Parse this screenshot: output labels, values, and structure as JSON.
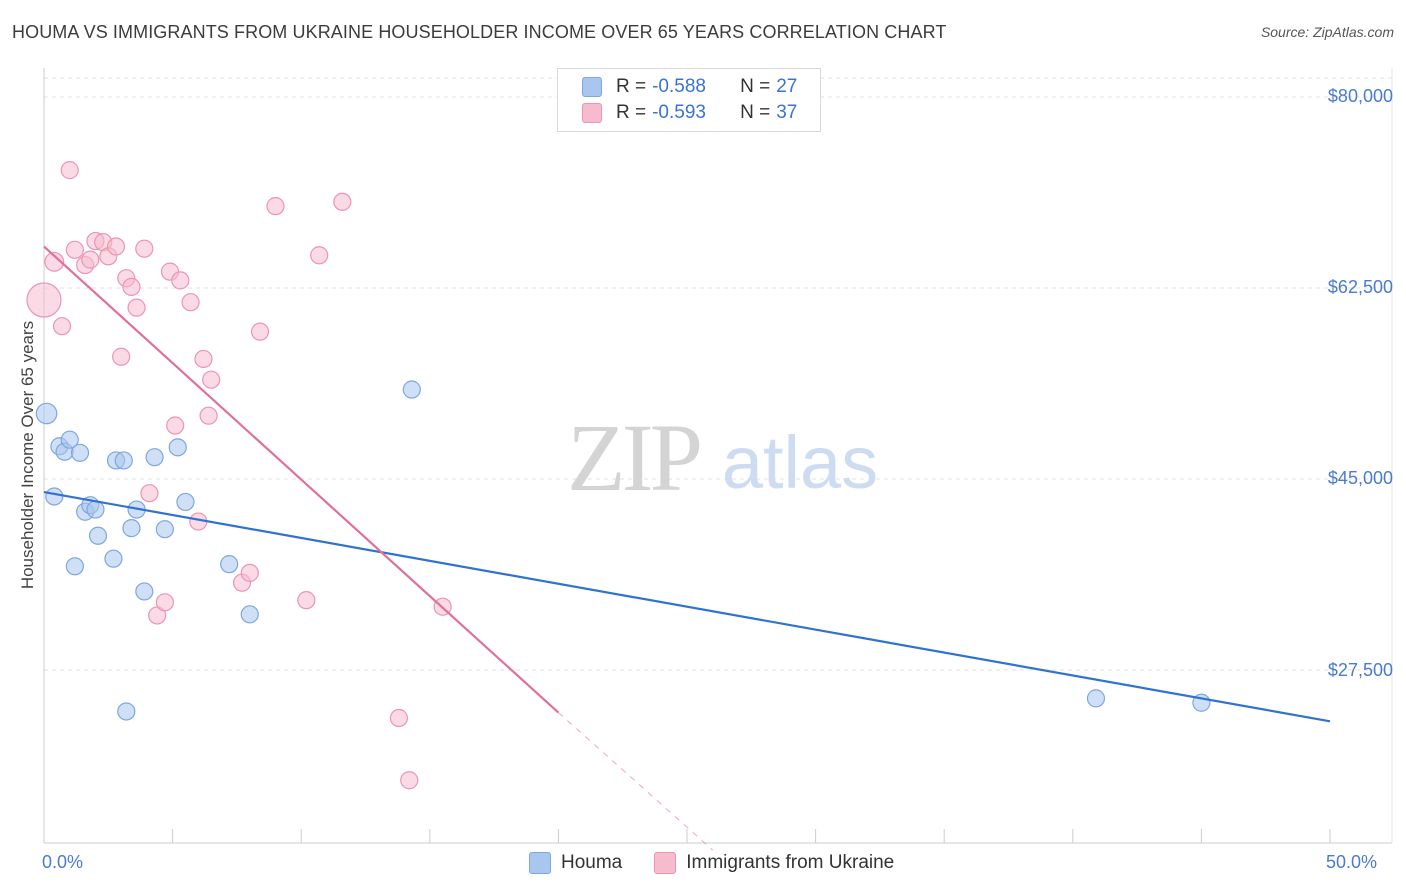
{
  "title": "HOUMA VS IMMIGRANTS FROM UKRAINE HOUSEHOLDER INCOME OVER 65 YEARS CORRELATION CHART",
  "source": "Source: ZipAtlas.com",
  "watermark": {
    "zip": "ZIP",
    "atlas": "atlas"
  },
  "legend": {
    "rows": [
      {
        "r_label": "R = ",
        "r_value": "-0.588",
        "n_label": "N = ",
        "n_value": "27",
        "color": "#a8c6ee",
        "border": "#7ea6e0"
      },
      {
        "r_label": "R = ",
        "r_value": "-0.593",
        "n_label": "N = ",
        "n_value": "37",
        "color": "#f6bccd",
        "border": "#ee94b0"
      }
    ]
  },
  "bottom_legend": [
    "Houma",
    "Immigrants from Ukraine"
  ],
  "chart_data": {
    "type": "scatter",
    "title": "HOUMA VS IMMIGRANTS FROM UKRAINE HOUSEHOLDER INCOME OVER 65 YEARS CORRELATION CHART",
    "xlabel": "",
    "ylabel": "Householder Income Over 65 years",
    "xlim": [
      0,
      50
    ],
    "ylim": [
      12000,
      83000
    ],
    "x_tick_labels": [
      "0.0%",
      "50.0%"
    ],
    "y_ticks": [
      {
        "value": 27500,
        "label": "$27,500"
      },
      {
        "value": 45000,
        "label": "$45,000"
      },
      {
        "value": 62500,
        "label": "$62,500"
      },
      {
        "value": 80000,
        "label": "$80,000"
      }
    ],
    "grid": true,
    "series": [
      {
        "name": "Houma",
        "color": "#a8c6ee",
        "stroke": "#7ea6e0",
        "line_color": "#2f72d2",
        "trend": {
          "x0": 0.0,
          "y0": 43800,
          "x1": 50.0,
          "y1": 22800,
          "dash_to": null
        },
        "points": [
          {
            "x": 0.1,
            "y": 51000,
            "s": 1.2
          },
          {
            "x": 0.4,
            "y": 43400,
            "s": 1
          },
          {
            "x": 0.6,
            "y": 48000,
            "s": 1
          },
          {
            "x": 0.8,
            "y": 47500,
            "s": 1
          },
          {
            "x": 1.0,
            "y": 48600,
            "s": 1
          },
          {
            "x": 1.2,
            "y": 37000,
            "s": 1
          },
          {
            "x": 1.4,
            "y": 47400,
            "s": 1
          },
          {
            "x": 1.6,
            "y": 42000,
            "s": 1
          },
          {
            "x": 1.8,
            "y": 42600,
            "s": 1
          },
          {
            "x": 2.0,
            "y": 42200,
            "s": 1
          },
          {
            "x": 2.1,
            "y": 39800,
            "s": 1
          },
          {
            "x": 2.7,
            "y": 37700,
            "s": 1
          },
          {
            "x": 2.8,
            "y": 46700,
            "s": 1
          },
          {
            "x": 3.1,
            "y": 46700,
            "s": 1
          },
          {
            "x": 3.2,
            "y": 23700,
            "s": 1
          },
          {
            "x": 3.4,
            "y": 40500,
            "s": 1
          },
          {
            "x": 3.6,
            "y": 42200,
            "s": 1
          },
          {
            "x": 3.9,
            "y": 34700,
            "s": 1
          },
          {
            "x": 4.3,
            "y": 47000,
            "s": 1
          },
          {
            "x": 4.7,
            "y": 40400,
            "s": 1
          },
          {
            "x": 5.2,
            "y": 47900,
            "s": 1
          },
          {
            "x": 5.5,
            "y": 42900,
            "s": 1
          },
          {
            "x": 7.2,
            "y": 37200,
            "s": 1
          },
          {
            "x": 8.0,
            "y": 32600,
            "s": 1
          },
          {
            "x": 14.3,
            "y": 53200,
            "s": 1
          },
          {
            "x": 40.9,
            "y": 24900,
            "s": 1
          },
          {
            "x": 45.0,
            "y": 24500,
            "s": 1
          }
        ]
      },
      {
        "name": "Immigrants from Ukraine",
        "color": "#f6bccd",
        "stroke": "#ee94b0",
        "line_color": "#e0709a",
        "trend": {
          "x0": 0.0,
          "y0": 66300,
          "x1": 20.0,
          "y1": 23600,
          "dash_to": {
            "x": 26.0,
            "y": 11000
          }
        },
        "points": [
          {
            "x": 0.0,
            "y": 61400,
            "s": 2.0
          },
          {
            "x": 0.4,
            "y": 64900,
            "s": 1.1
          },
          {
            "x": 0.7,
            "y": 59000,
            "s": 1
          },
          {
            "x": 1.0,
            "y": 73300,
            "s": 1
          },
          {
            "x": 1.2,
            "y": 66000,
            "s": 1
          },
          {
            "x": 1.6,
            "y": 64600,
            "s": 1
          },
          {
            "x": 1.8,
            "y": 65100,
            "s": 1
          },
          {
            "x": 2.0,
            "y": 66800,
            "s": 1
          },
          {
            "x": 2.3,
            "y": 66700,
            "s": 1
          },
          {
            "x": 2.5,
            "y": 65400,
            "s": 1
          },
          {
            "x": 2.8,
            "y": 66300,
            "s": 1
          },
          {
            "x": 3.0,
            "y": 56200,
            "s": 1
          },
          {
            "x": 3.2,
            "y": 63400,
            "s": 1
          },
          {
            "x": 3.4,
            "y": 62600,
            "s": 1
          },
          {
            "x": 3.6,
            "y": 60700,
            "s": 1
          },
          {
            "x": 3.9,
            "y": 66100,
            "s": 1
          },
          {
            "x": 4.1,
            "y": 43700,
            "s": 1
          },
          {
            "x": 4.4,
            "y": 32500,
            "s": 1
          },
          {
            "x": 4.7,
            "y": 33700,
            "s": 1
          },
          {
            "x": 4.9,
            "y": 64000,
            "s": 1
          },
          {
            "x": 5.1,
            "y": 49900,
            "s": 1
          },
          {
            "x": 5.3,
            "y": 63200,
            "s": 1
          },
          {
            "x": 5.7,
            "y": 61200,
            "s": 1
          },
          {
            "x": 6.0,
            "y": 41100,
            "s": 1
          },
          {
            "x": 6.2,
            "y": 56000,
            "s": 1
          },
          {
            "x": 6.5,
            "y": 54100,
            "s": 1
          },
          {
            "x": 6.4,
            "y": 50800,
            "s": 1
          },
          {
            "x": 7.7,
            "y": 35500,
            "s": 1
          },
          {
            "x": 8.0,
            "y": 36400,
            "s": 1
          },
          {
            "x": 8.4,
            "y": 58500,
            "s": 1
          },
          {
            "x": 9.0,
            "y": 70000,
            "s": 1
          },
          {
            "x": 10.2,
            "y": 33900,
            "s": 1
          },
          {
            "x": 10.7,
            "y": 65500,
            "s": 1
          },
          {
            "x": 11.6,
            "y": 70400,
            "s": 1
          },
          {
            "x": 13.8,
            "y": 23100,
            "s": 1
          },
          {
            "x": 14.2,
            "y": 17400,
            "s": 1
          },
          {
            "x": 15.5,
            "y": 33300,
            "s": 1
          }
        ]
      }
    ]
  }
}
